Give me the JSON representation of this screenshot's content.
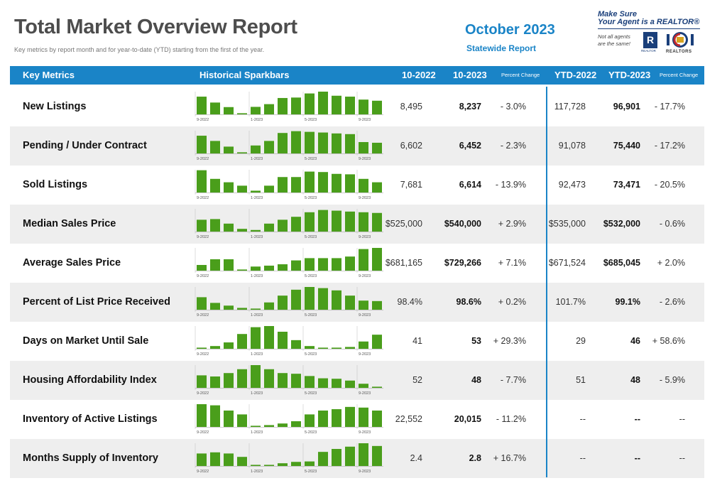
{
  "header": {
    "title": "Total Market Overview Report",
    "subtitle": "Key metrics by report month and for year-to-date (YTD) starting from the first of the year.",
    "month": "October 2023",
    "scope": "Statewide Report"
  },
  "brand": {
    "line1": "Make Sure",
    "line2": "Your Agent is a REALTOR®",
    "line3": "Not all agents",
    "line4": "are the same!",
    "realtor_mark": "R",
    "realtor_caption": "REALTOR",
    "colorado_caption": "REALTORS"
  },
  "columns": {
    "metrics": "Key Metrics",
    "sparkbars": "Historical Sparkbars",
    "prev": "10-2022",
    "curr": "10-2023",
    "pct": "Percent Change",
    "ytd_prev": "YTD-2022",
    "ytd_curr": "YTD-2023",
    "ytd_pct": "Percent Change"
  },
  "spark_axis": [
    "9-2022",
    "1-2023",
    "5-2023",
    "9-2023"
  ],
  "colors": {
    "accent": "#1a84c7",
    "bar": "#4a9e1b",
    "shade": "#eeeeee"
  },
  "rows": [
    {
      "metric": "New Listings",
      "prev": "8,495",
      "curr": "8,237",
      "pct": "- 3.0%",
      "ytd_prev": "117,728",
      "ytd_curr": "96,901",
      "ytd_pct": "- 17.7%",
      "bars": [
        0.78,
        0.52,
        0.32,
        0.05,
        0.33,
        0.45,
        0.72,
        0.74,
        0.92,
        1.0,
        0.82,
        0.78,
        0.65,
        0.6
      ]
    },
    {
      "metric": "Pending / Under Contract",
      "prev": "6,602",
      "curr": "6,452",
      "pct": "- 2.3%",
      "ytd_prev": "91,078",
      "ytd_curr": "75,440",
      "ytd_pct": "- 17.2%",
      "bars": [
        0.78,
        0.55,
        0.3,
        0.05,
        0.35,
        0.55,
        0.9,
        0.98,
        0.95,
        0.92,
        0.88,
        0.85,
        0.5,
        0.47
      ]
    },
    {
      "metric": "Sold Listings",
      "prev": "7,681",
      "curr": "6,614",
      "pct": "- 13.9%",
      "ytd_prev": "92,473",
      "ytd_curr": "73,471",
      "ytd_pct": "- 20.5%",
      "bars": [
        0.98,
        0.6,
        0.45,
        0.3,
        0.08,
        0.3,
        0.68,
        0.68,
        0.92,
        0.9,
        0.82,
        0.8,
        0.6,
        0.45
      ]
    },
    {
      "metric": "Median Sales Price",
      "prev": "$525,000",
      "curr": "$540,000",
      "pct": "+ 2.9%",
      "ytd_prev": "$535,000",
      "ytd_curr": "$532,000",
      "ytd_pct": "- 0.6%",
      "bars": [
        0.52,
        0.55,
        0.35,
        0.12,
        0.07,
        0.35,
        0.52,
        0.65,
        0.85,
        0.95,
        0.92,
        0.88,
        0.85,
        0.82
      ]
    },
    {
      "metric": "Average Sales Price",
      "prev": "$681,165",
      "curr": "$729,266",
      "pct": "+ 7.1%",
      "ytd_prev": "$671,524",
      "ytd_curr": "$685,045",
      "ytd_pct": "+ 2.0%",
      "bars": [
        0.25,
        0.5,
        0.5,
        0.05,
        0.18,
        0.22,
        0.28,
        0.45,
        0.55,
        0.55,
        0.55,
        0.62,
        0.95,
        1.0
      ]
    },
    {
      "metric": "Percent of List Price Received",
      "prev": "98.4%",
      "curr": "98.6%",
      "pct": "+ 0.2%",
      "ytd_prev": "101.7%",
      "ytd_curr": "99.1%",
      "ytd_pct": "- 2.6%",
      "bars": [
        0.55,
        0.3,
        0.18,
        0.08,
        0.05,
        0.32,
        0.62,
        0.88,
        1.0,
        0.95,
        0.85,
        0.62,
        0.4,
        0.38
      ]
    },
    {
      "metric": "Days on Market Until Sale",
      "prev": "41",
      "curr": "53",
      "pct": "+ 29.3%",
      "ytd_prev": "29",
      "ytd_curr": "46",
      "ytd_pct": "+ 58.6%",
      "bars": [
        0.05,
        0.12,
        0.28,
        0.65,
        0.95,
        1.0,
        0.75,
        0.38,
        0.12,
        0.05,
        0.05,
        0.08,
        0.32,
        0.62
      ]
    },
    {
      "metric": "Housing Affordability Index",
      "prev": "52",
      "curr": "48",
      "pct": "- 7.7%",
      "ytd_prev": "51",
      "ytd_curr": "48",
      "ytd_pct": "- 5.9%",
      "bars": [
        0.55,
        0.5,
        0.65,
        0.82,
        1.0,
        0.82,
        0.65,
        0.62,
        0.52,
        0.42,
        0.4,
        0.32,
        0.18,
        0.05
      ]
    },
    {
      "metric": "Inventory of Active Listings",
      "prev": "22,552",
      "curr": "20,015",
      "pct": "- 11.2%",
      "ytd_prev": "--",
      "ytd_curr": "--",
      "ytd_pct": "--",
      "bars": [
        1.0,
        0.95,
        0.72,
        0.55,
        0.05,
        0.08,
        0.15,
        0.25,
        0.55,
        0.72,
        0.78,
        0.88,
        0.85,
        0.72
      ]
    },
    {
      "metric": "Months Supply of Inventory",
      "prev": "2.4",
      "curr": "2.8",
      "pct": "+ 16.7%",
      "ytd_prev": "--",
      "ytd_curr": "--",
      "ytd_pct": "--",
      "bars": [
        0.55,
        0.6,
        0.55,
        0.4,
        0.05,
        0.05,
        0.12,
        0.18,
        0.2,
        0.62,
        0.75,
        0.85,
        1.0,
        0.88
      ]
    }
  ]
}
